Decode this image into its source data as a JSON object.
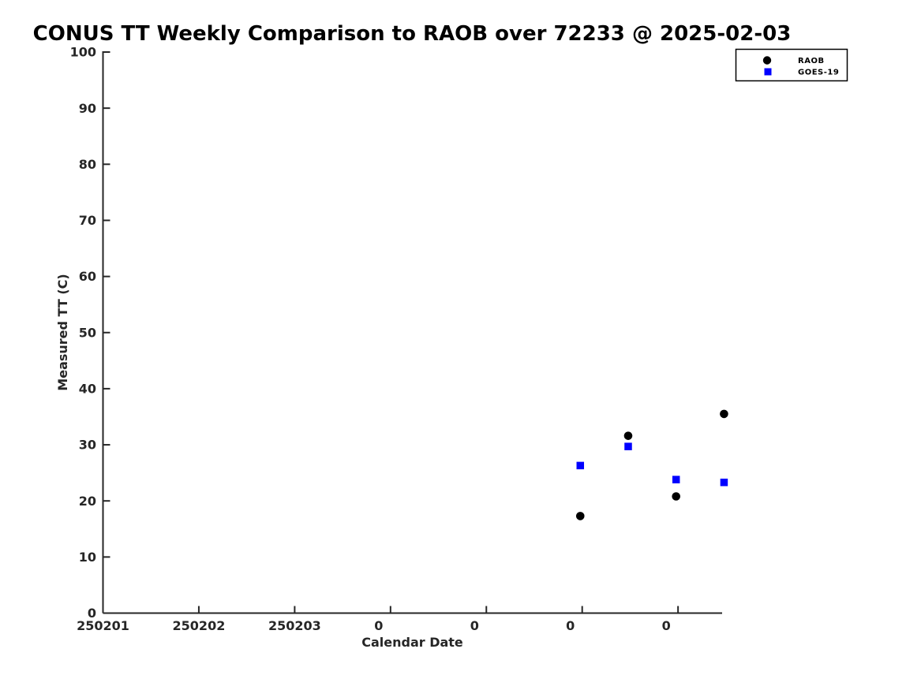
{
  "chart_data": {
    "type": "scatter",
    "title": "CONUS TT Weekly Comparison to RAOB over 72233 @ 2025-02-03",
    "xlabel": "Calendar Date",
    "ylabel": "Measured TT (C)",
    "xlim": [
      0,
      6.46
    ],
    "ylim": [
      0,
      100
    ],
    "x_ticks": [
      {
        "pos": 0,
        "label": "250201"
      },
      {
        "pos": 1,
        "label": "250202"
      },
      {
        "pos": 2,
        "label": "250203"
      },
      {
        "pos": 3,
        "label": "0"
      },
      {
        "pos": 4,
        "label": "0"
      },
      {
        "pos": 5,
        "label": "0"
      },
      {
        "pos": 6,
        "label": "0"
      }
    ],
    "y_ticks": [
      0,
      10,
      20,
      30,
      40,
      50,
      60,
      70,
      80,
      90,
      100
    ],
    "grid": false,
    "legend_position": "outside-top-right",
    "series": [
      {
        "name": "RAOB",
        "marker": "circle",
        "color": "#000000",
        "x": [
          4.98,
          5.48,
          5.98,
          6.48
        ],
        "y": [
          17.3,
          31.6,
          20.8,
          35.5
        ]
      },
      {
        "name": "GOES-19",
        "marker": "square",
        "color": "#0000ff",
        "x": [
          4.98,
          5.48,
          5.98,
          6.48
        ],
        "y": [
          26.3,
          29.7,
          23.8,
          23.3
        ]
      }
    ]
  }
}
